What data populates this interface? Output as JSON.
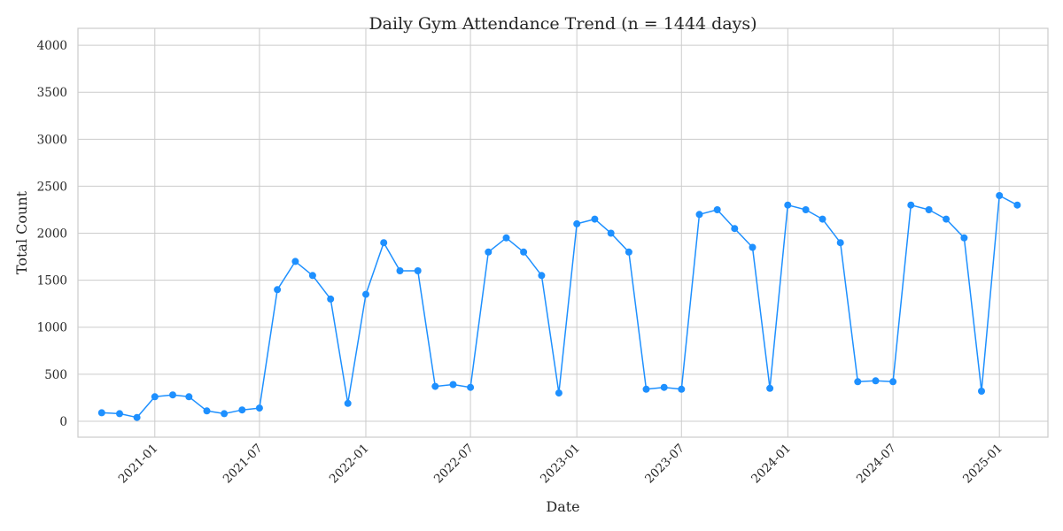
{
  "chart_data": {
    "type": "line",
    "title": "Daily Gym Attendance Trend (n = 1444 days)",
    "xlabel": "Date",
    "ylabel": "Total Count",
    "x_start": "2020-10-01",
    "x_end": "2025-02-13",
    "xlim": [
      "2020-08-21",
      "2025-03-26"
    ],
    "ylim": [
      -170,
      4180
    ],
    "grid": true,
    "marker": "circle",
    "colors": {
      "series": "#1e90ff",
      "grid": "#cccccc",
      "text": "#262626"
    },
    "x_ticks": [
      {
        "date": "2021-01-01",
        "label": "2021-01"
      },
      {
        "date": "2021-07-01",
        "label": "2021-07"
      },
      {
        "date": "2022-01-01",
        "label": "2022-01"
      },
      {
        "date": "2022-07-01",
        "label": "2022-07"
      },
      {
        "date": "2023-01-01",
        "label": "2023-01"
      },
      {
        "date": "2023-07-01",
        "label": "2023-07"
      },
      {
        "date": "2024-01-01",
        "label": "2024-01"
      },
      {
        "date": "2024-07-01",
        "label": "2024-07"
      },
      {
        "date": "2025-01-01",
        "label": "2025-01"
      }
    ],
    "y_ticks": [
      0,
      500,
      1000,
      1500,
      2000,
      2500,
      3000,
      3500,
      4000
    ],
    "series": [
      {
        "x": [
          "2020-10-01",
          "2020-11-01",
          "2020-12-01",
          "2021-01-01",
          "2021-02-01",
          "2021-03-01",
          "2021-04-01",
          "2021-05-01",
          "2021-06-01",
          "2021-07-01",
          "2021-08-01",
          "2021-09-01",
          "2021-10-01",
          "2021-11-01",
          "2021-12-01",
          "2022-01-01",
          "2022-02-01",
          "2022-03-01",
          "2022-04-01",
          "2022-05-01",
          "2022-06-01",
          "2022-07-01",
          "2022-08-01",
          "2022-09-01",
          "2022-10-01",
          "2022-11-01",
          "2022-12-01",
          "2023-01-01",
          "2023-02-01",
          "2023-03-01",
          "2023-04-01",
          "2023-05-01",
          "2023-06-01",
          "2023-07-01",
          "2023-08-01",
          "2023-09-01",
          "2023-10-01",
          "2023-11-01",
          "2023-12-01",
          "2024-01-01",
          "2024-02-01",
          "2024-03-01",
          "2024-04-01",
          "2024-05-01",
          "2024-06-01",
          "2024-07-01",
          "2024-08-01",
          "2024-09-01",
          "2024-10-01",
          "2024-11-01",
          "2024-12-01",
          "2025-01-01",
          "2025-02-01"
        ],
        "values": [
          90,
          80,
          40,
          260,
          280,
          260,
          110,
          80,
          120,
          140,
          1400,
          1700,
          1550,
          1300,
          190,
          1350,
          1900,
          1600,
          1600,
          370,
          390,
          360,
          1800,
          1950,
          1800,
          1550,
          300,
          2100,
          2150,
          2000,
          1800,
          340,
          360,
          340,
          2200,
          2250,
          2050,
          1850,
          350,
          2300,
          2250,
          2150,
          1900,
          420,
          430,
          420,
          2300,
          2250,
          2150,
          1950,
          320,
          2400,
          2300
        ]
      }
    ]
  }
}
